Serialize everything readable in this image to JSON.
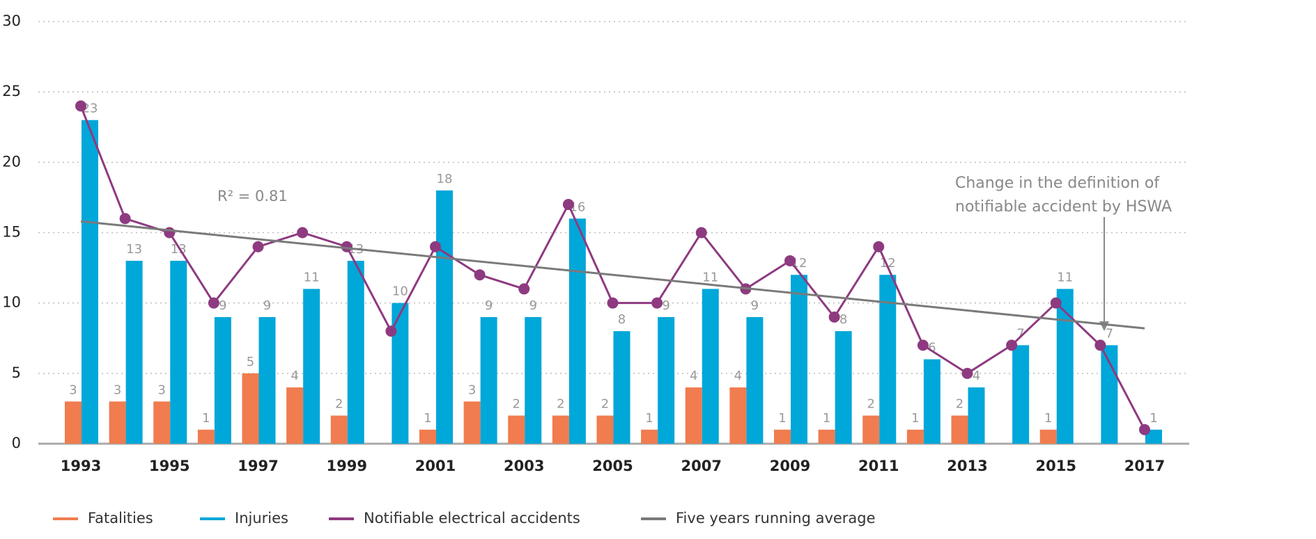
{
  "chart_data": {
    "type": "bar",
    "x": [
      1993,
      1994,
      1995,
      1996,
      1997,
      1998,
      1999,
      2000,
      2001,
      2002,
      2003,
      2004,
      2005,
      2006,
      2007,
      2008,
      2009,
      2010,
      2011,
      2012,
      2013,
      2014,
      2015,
      2016,
      2017
    ],
    "xticks": [
      1993,
      1995,
      1997,
      1999,
      2001,
      2003,
      2005,
      2007,
      2009,
      2011,
      2013,
      2015,
      2017
    ],
    "ylim": [
      0,
      30
    ],
    "yticks": [
      0,
      5,
      10,
      15,
      20,
      25,
      30
    ],
    "grid": true,
    "series": [
      {
        "name": "Fatalities",
        "type": "bar",
        "color": "#f07c4f",
        "values": [
          3,
          3,
          3,
          1,
          5,
          4,
          2,
          null,
          1,
          3,
          2,
          2,
          2,
          1,
          4,
          4,
          1,
          1,
          2,
          1,
          2,
          null,
          1,
          null,
          null
        ]
      },
      {
        "name": "Injuries",
        "type": "bar",
        "color": "#00a7d9",
        "values": [
          23,
          13,
          13,
          9,
          9,
          11,
          13,
          10,
          18,
          9,
          9,
          16,
          8,
          9,
          11,
          9,
          12,
          8,
          12,
          6,
          4,
          7,
          11,
          7,
          1
        ]
      },
      {
        "name": "Notifiable electrical accidents",
        "type": "line",
        "color": "#8e3a80",
        "values": [
          24,
          16,
          15,
          10,
          14,
          15,
          14,
          8,
          14,
          12,
          11,
          17,
          10,
          10,
          15,
          11,
          13,
          9,
          14,
          7,
          5,
          7,
          10,
          7,
          1
        ]
      },
      {
        "name": "Five years running average",
        "type": "line",
        "color": "#7a7a7a",
        "x": [
          1993,
          2017
        ],
        "values": [
          15.8,
          8.2
        ]
      }
    ],
    "annotations": [
      "R² = 0.81",
      "Change in the definition of",
      "notifiable accident by HSWA"
    ]
  }
}
